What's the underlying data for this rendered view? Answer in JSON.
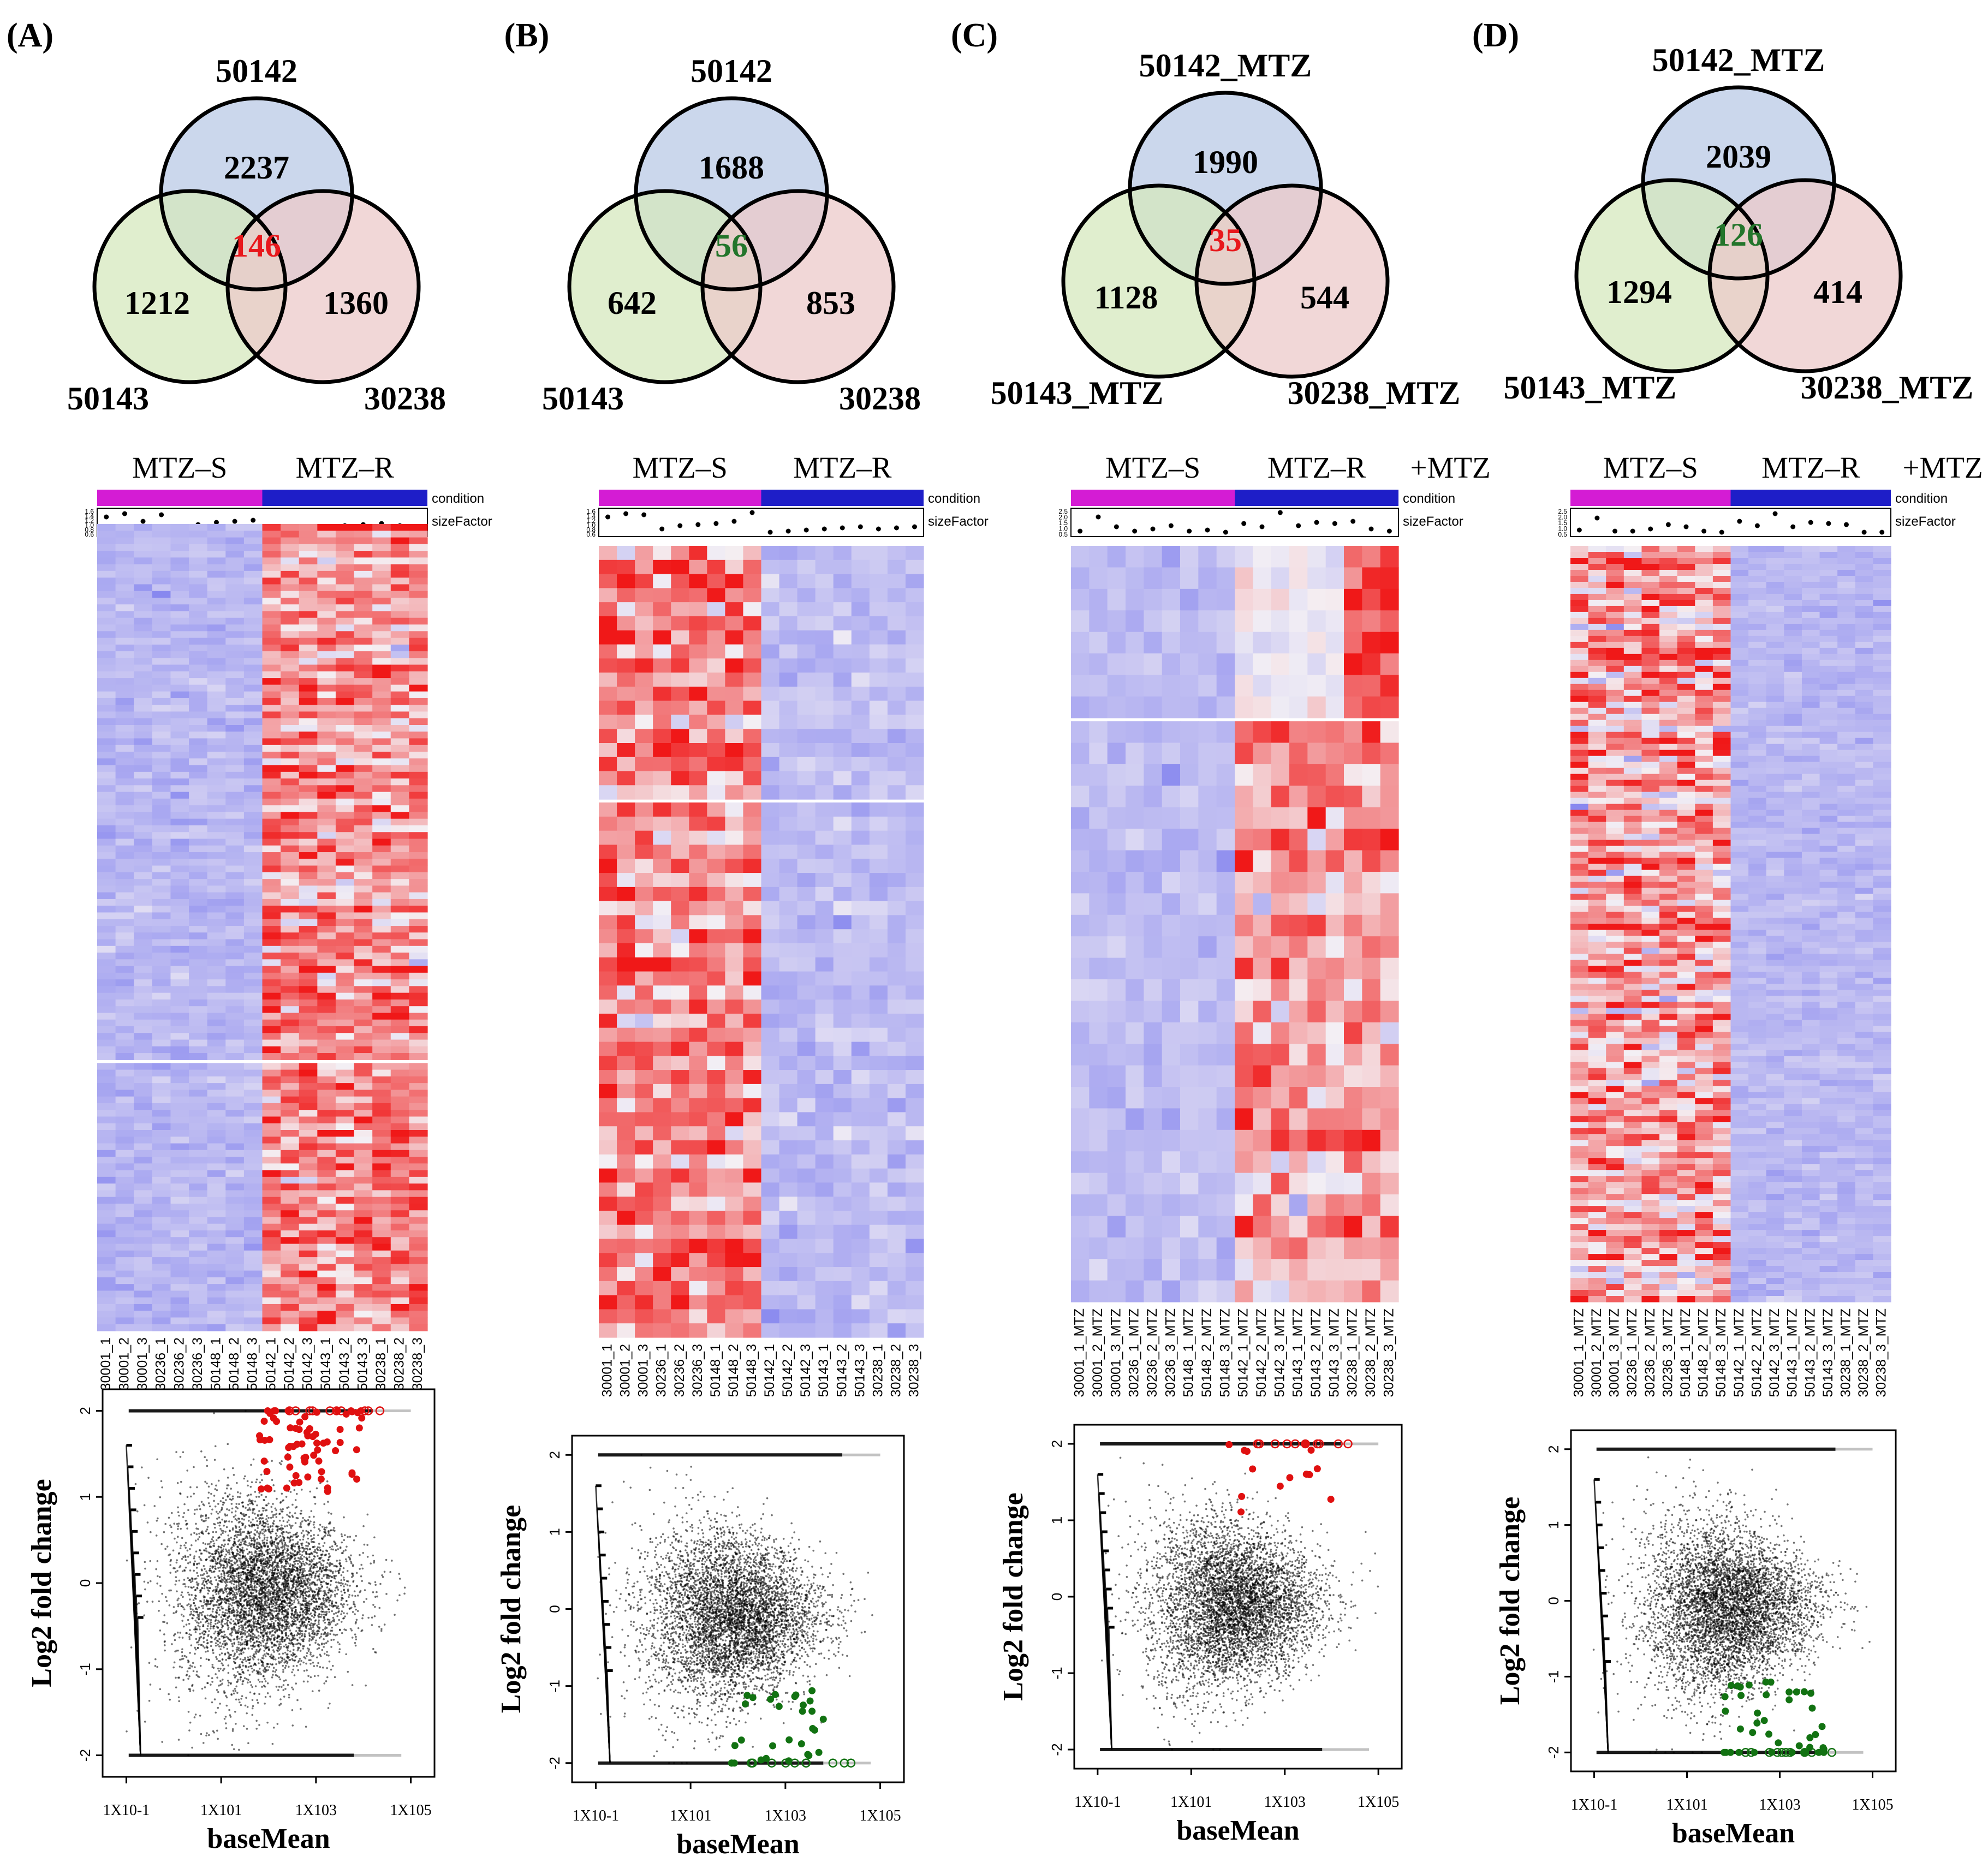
{
  "colors": {
    "venn_a": "#b9c9e6",
    "venn_b": "#d6e8bd",
    "venn_c": "#ecc9c9",
    "center_red": "#e8181c",
    "center_green": "#23752b",
    "magenta": "#d41cd4",
    "blue": "#1e1ec8",
    "heat_low": "#8888ef",
    "heat_mid": "#f4f0f4",
    "heat_high": "#f01818",
    "ma_red": "#e01010",
    "ma_green": "#127212"
  },
  "axis_common": {
    "ylabel": "Log2 fold change",
    "xlabel": "baseMean",
    "yticks": [
      "2",
      "1",
      "0",
      "-1",
      "-2"
    ],
    "xticks": [
      "1X10-1",
      "1X101",
      "1X103",
      "1X105"
    ]
  },
  "panels": [
    {
      "letter": "(A)",
      "venn": {
        "top": "50142",
        "left": "50143",
        "right": "30238",
        "counts": {
          "a": "2237",
          "b": "1212",
          "c": "1360",
          "center": "146"
        },
        "center_color": "red"
      },
      "heatmap": {
        "group_s": "MTZ–S",
        "group_r": "MTZ–R",
        "extra": "",
        "condition_label": "condition",
        "size_factor_label": "sizeFactor",
        "size_ticks": [
          "1.6",
          "1.4",
          "1.2",
          "1.0",
          "0.8",
          "0.6"
        ],
        "size_factors": [
          0.75,
          0.9,
          0.55,
          0.85,
          0.2,
          0.4,
          0.5,
          0.55,
          0.6,
          0.1,
          0.15,
          0.25,
          0.3,
          0.35,
          0.4,
          0.45,
          0.35,
          0.3
        ],
        "samples": [
          "30001_1",
          "30001_2",
          "30001_3",
          "30236_1",
          "30236_2",
          "30236_3",
          "50148_1",
          "50148_2",
          "50148_3",
          "50142_1",
          "50142_2",
          "50142_3",
          "50143_1",
          "50143_2",
          "50143_3",
          "30238_1",
          "30238_2",
          "30238_3"
        ],
        "n_rows": 120,
        "gap_row": 80,
        "pattern": "A"
      },
      "ma": {
        "direction": "up",
        "hl": "red",
        "n_sig": 70
      }
    },
    {
      "letter": "(B)",
      "venn": {
        "top": "50142",
        "left": "50143",
        "right": "30238",
        "counts": {
          "a": "1688",
          "b": "642",
          "c": "853",
          "center": "56"
        },
        "center_color": "green"
      },
      "heatmap": {
        "group_s": "MTZ–S",
        "group_r": "MTZ–R",
        "extra": "",
        "condition_label": "condition",
        "size_factor_label": "sizeFactor",
        "size_ticks": [
          "1.6",
          "1.4",
          "1.2",
          "1.0",
          "0.8",
          "0.6"
        ],
        "size_factors": [
          0.75,
          0.9,
          0.85,
          0.2,
          0.35,
          0.4,
          0.45,
          0.55,
          0.95,
          0.05,
          0.1,
          0.15,
          0.2,
          0.25,
          0.3,
          0.2,
          0.25,
          0.3
        ],
        "samples": [
          "30001_1",
          "30001_2",
          "30001_3",
          "30236_1",
          "30236_2",
          "30236_3",
          "50148_1",
          "50148_2",
          "50148_3",
          "50142_1",
          "50142_2",
          "50142_3",
          "50143_1",
          "50143_2",
          "50143_3",
          "30238_1",
          "30238_2",
          "30238_3"
        ],
        "n_rows": 56,
        "gap_row": 18,
        "pattern": "B"
      },
      "ma": {
        "direction": "down",
        "hl": "green",
        "n_sig": 30
      }
    },
    {
      "letter": "(C)",
      "venn": {
        "top": "50142_MTZ",
        "left": "50143_MTZ",
        "right": "30238_MTZ",
        "counts": {
          "a": "1990",
          "b": "1128",
          "c": "544",
          "center": "35"
        },
        "center_color": "red"
      },
      "heatmap": {
        "group_s": "MTZ–S",
        "group_r": "MTZ–R",
        "extra": "+MTZ",
        "condition_label": "condition",
        "size_factor_label": "sizeFactor",
        "size_ticks": [
          "2.5",
          "2.0",
          "1.5",
          "1.0",
          "0.5"
        ],
        "size_factors": [
          0.1,
          0.75,
          0.3,
          0.1,
          0.2,
          0.35,
          0.1,
          0.15,
          0.05,
          0.45,
          0.3,
          0.95,
          0.35,
          0.5,
          0.45,
          0.55,
          0.2,
          0.1
        ],
        "samples": [
          "30001_1_MTZ",
          "30001_2_MTZ",
          "30001_3_MTZ",
          "30236_1_MTZ",
          "30236_2_MTZ",
          "30236_3_MTZ",
          "50148_1_MTZ",
          "50148_2_MTZ",
          "50148_3_MTZ",
          "50142_1_MTZ",
          "50142_2_MTZ",
          "50142_3_MTZ",
          "50143_1_MTZ",
          "50143_2_MTZ",
          "50143_3_MTZ",
          "30238_1_MTZ",
          "30238_2_MTZ",
          "30238_3_MTZ"
        ],
        "n_rows": 35,
        "gap_row": 8,
        "pattern": "C"
      },
      "ma": {
        "direction": "up",
        "hl": "red",
        "n_sig": 14
      }
    },
    {
      "letter": "(D)",
      "venn": {
        "top": "50142_MTZ",
        "left": "50143_MTZ",
        "right": "30238_MTZ",
        "counts": {
          "a": "2039",
          "b": "1294",
          "c": "414",
          "center": "126"
        },
        "center_color": "green"
      },
      "heatmap": {
        "group_s": "MTZ–S",
        "group_r": "MTZ–R",
        "extra": "+MTZ",
        "condition_label": "condition",
        "size_factor_label": "sizeFactor",
        "size_ticks": [
          "2.5",
          "2.0",
          "1.5",
          "1.0",
          "0.5"
        ],
        "size_factors": [
          0.15,
          0.7,
          0.1,
          0.1,
          0.2,
          0.4,
          0.3,
          0.1,
          0.05,
          0.55,
          0.35,
          0.9,
          0.3,
          0.5,
          0.45,
          0.4,
          0.05,
          0.05
        ],
        "samples": [
          "30001_1_MTZ",
          "30001_2_MTZ",
          "30001_3_MTZ",
          "30236_1_MTZ",
          "30236_2_MTZ",
          "30236_3_MTZ",
          "50148_1_MTZ",
          "50148_2_MTZ",
          "50148_3_MTZ",
          "50142_1_MTZ",
          "50142_2_MTZ",
          "50142_3_MTZ",
          "50143_1_MTZ",
          "50143_2_MTZ",
          "50143_3_MTZ",
          "30238_1_MTZ",
          "30238_2_MTZ",
          "30238_3_MTZ"
        ],
        "n_rows": 126,
        "gap_row": -1,
        "pattern": "D"
      },
      "ma": {
        "direction": "down",
        "hl": "green",
        "n_sig": 40
      }
    }
  ],
  "chart_data": [
    {
      "type": "venn",
      "title": "(A)",
      "sets": [
        "50142",
        "50143",
        "30238"
      ],
      "unique": {
        "50142": 2237,
        "50143": 1212,
        "30238": 1360
      },
      "all_three": 146
    },
    {
      "type": "venn",
      "title": "(B)",
      "sets": [
        "50142",
        "50143",
        "30238"
      ],
      "unique": {
        "50142": 1688,
        "50143": 642,
        "30238": 853
      },
      "all_three": 56
    },
    {
      "type": "venn",
      "title": "(C)",
      "sets": [
        "50142_MTZ",
        "50143_MTZ",
        "30238_MTZ"
      ],
      "unique": {
        "50142_MTZ": 1990,
        "50143_MTZ": 1128,
        "30238_MTZ": 544
      },
      "all_three": 35
    },
    {
      "type": "venn",
      "title": "(D)",
      "sets": [
        "50142_MTZ",
        "50143_MTZ",
        "30238_MTZ"
      ],
      "unique": {
        "50142_MTZ": 2039,
        "50143_MTZ": 1294,
        "30238_MTZ": 414
      },
      "all_three": 126
    },
    {
      "type": "heatmap",
      "panels": [
        "(A)",
        "(B)",
        "(C)",
        "(D)"
      ],
      "columns_groups": [
        "MTZ–S",
        "MTZ–R"
      ],
      "annotation_tracks": [
        "condition",
        "sizeFactor"
      ]
    },
    {
      "type": "scatter",
      "panels": [
        "(A)",
        "(B)",
        "(C)",
        "(D)"
      ],
      "xlabel": "baseMean",
      "ylabel": "Log2 fold change",
      "xscale": "log10",
      "xlim": [
        -1.5,
        5.5
      ],
      "ylim": [
        -2,
        2
      ],
      "xticks": [
        "1X10-1",
        "1X101",
        "1X103",
        "1X105"
      ],
      "yticks": [
        2,
        1,
        0,
        -1,
        -2
      ],
      "highlight": {
        "(A)": "up, red",
        "(B)": "down, green",
        "(C)": "up, red",
        "(D)": "down, green"
      }
    }
  ]
}
